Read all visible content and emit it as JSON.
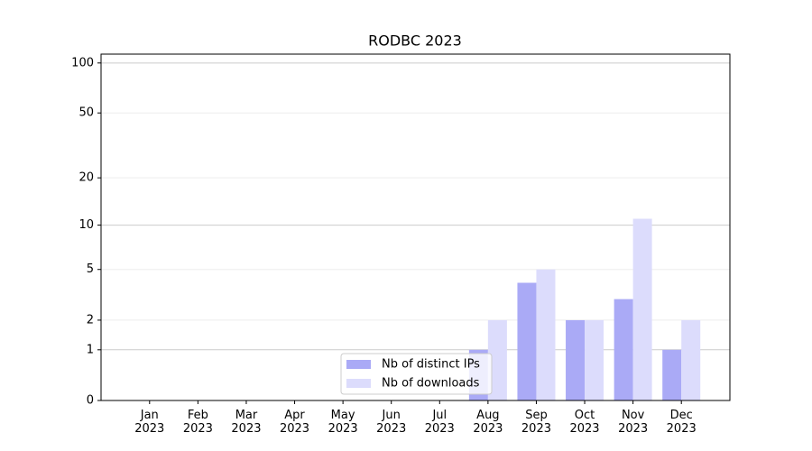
{
  "chart_data": {
    "type": "bar",
    "title": "RODBC 2023",
    "categories": [
      "Jan\n2023",
      "Feb\n2023",
      "Mar\n2023",
      "Apr\n2023",
      "May\n2023",
      "Jun\n2023",
      "Jul\n2023",
      "Aug\n2023",
      "Sep\n2023",
      "Oct\n2023",
      "Nov\n2023",
      "Dec\n2023"
    ],
    "series": [
      {
        "name": "Nb of distinct IPs",
        "color": "#aaaaf6",
        "values": [
          0,
          0,
          0,
          0,
          0,
          0,
          0,
          1,
          4,
          2,
          3,
          1
        ]
      },
      {
        "name": "Nb of downloads",
        "color": "#dcdcfc",
        "values": [
          0,
          0,
          0,
          0,
          0,
          0,
          0,
          2,
          5,
          2,
          11,
          2
        ]
      }
    ],
    "yscale": "log1p",
    "ylim": [
      0,
      113
    ],
    "yticks": [
      0,
      1,
      2,
      5,
      10,
      20,
      50,
      100
    ],
    "grid": true,
    "legend": "lower center"
  }
}
